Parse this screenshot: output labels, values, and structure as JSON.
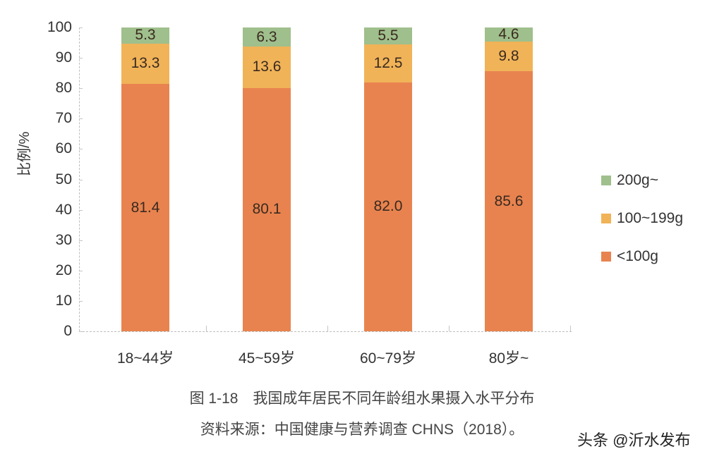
{
  "chart_data": {
    "type": "bar",
    "stacked": true,
    "title": "图 1-18　我国成年居民不同年龄组水果摄入水平分布",
    "subtitle": "资料来源：中国健康与营养调查 CHNS（2018）。",
    "xlabel": "",
    "ylabel": "比例/%",
    "ylim": [
      0,
      100
    ],
    "yticks": [
      "0",
      "10",
      "20",
      "30",
      "40",
      "50",
      "60",
      "70",
      "80",
      "90",
      "100"
    ],
    "categories": [
      "18~44岁",
      "45~59岁",
      "60~79岁",
      "80岁~"
    ],
    "series": [
      {
        "name": "<100g",
        "color": "#e8834f",
        "values": [
          81.4,
          80.1,
          82.0,
          85.6
        ],
        "labels": [
          "81.4",
          "80.1",
          "82.0",
          "85.6"
        ]
      },
      {
        "name": "100~199g",
        "color": "#f0b358",
        "values": [
          13.3,
          13.6,
          12.5,
          9.8
        ],
        "labels": [
          "13.3",
          "13.6",
          "12.5",
          "9.8"
        ]
      },
      {
        "name": "200g~",
        "color": "#9fbf8c",
        "values": [
          5.3,
          6.3,
          5.5,
          4.6
        ],
        "labels": [
          "5.3",
          "6.3",
          "5.5",
          "4.6"
        ]
      }
    ],
    "legend": {
      "position": "right",
      "entries": [
        "200g~",
        "100~199g",
        "<100g"
      ]
    },
    "grid": false
  },
  "legend": {
    "items": [
      {
        "label": "200g~",
        "color": "#9fbf8c"
      },
      {
        "label": "100~199g",
        "color": "#f0b358"
      },
      {
        "label": "<100g",
        "color": "#e8834f"
      }
    ]
  },
  "caption": {
    "title": "图 1-18　我国成年居民不同年龄组水果摄入水平分布",
    "source": "资料来源：中国健康与营养调查 CHNS（2018）。"
  },
  "watermark": "头条 @沂水发布"
}
